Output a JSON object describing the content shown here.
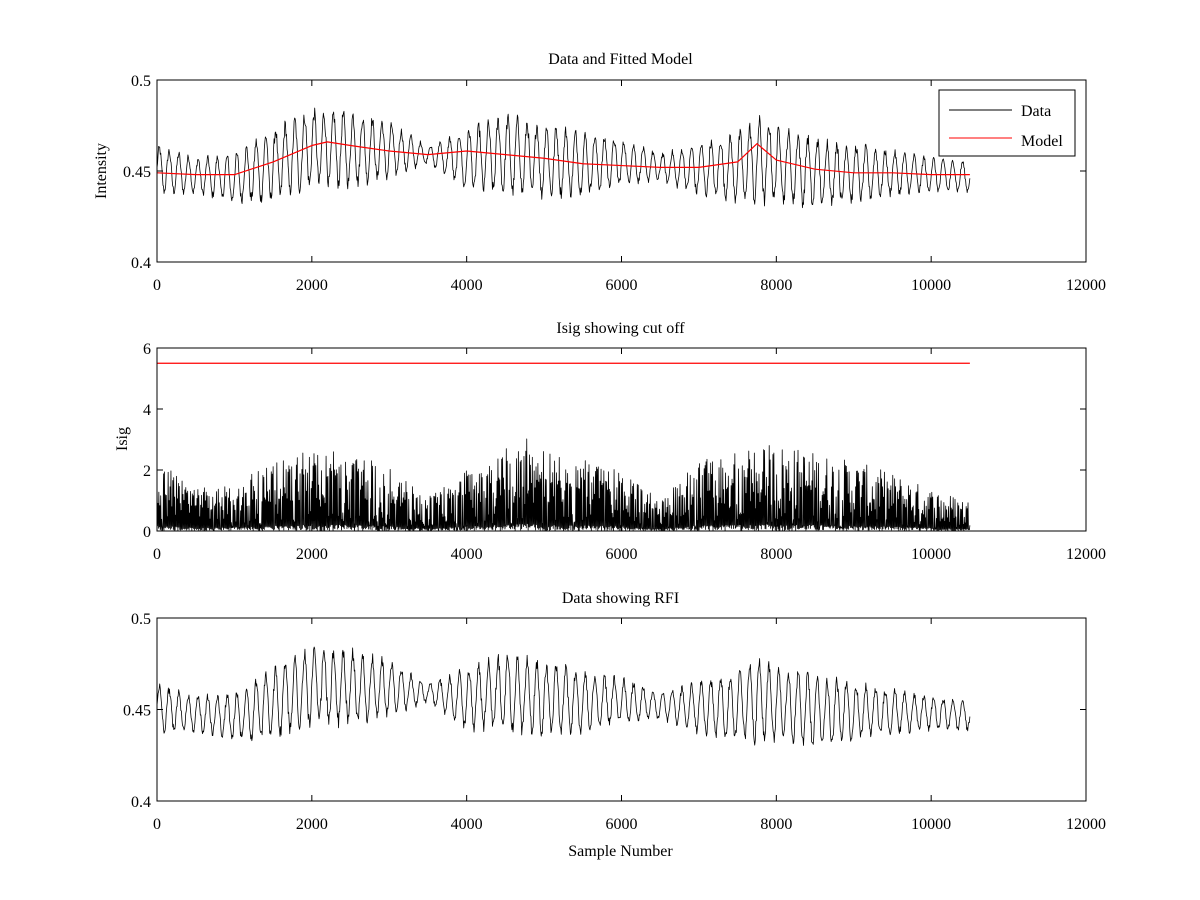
{
  "figure": {
    "background": "#ffffff",
    "ink_color": "#000000",
    "model_color": "#ff0000"
  },
  "chart_data": [
    {
      "type": "line",
      "title": "Data and Fitted Model",
      "xlabel": "",
      "ylabel": "Intensity",
      "xlim": [
        0,
        12000
      ],
      "ylim": [
        0.4,
        0.5
      ],
      "xticks": [
        0,
        2000,
        4000,
        6000,
        8000,
        10000,
        12000
      ],
      "yticks": [
        0.4,
        0.45,
        0.5
      ],
      "grid": false,
      "legend": {
        "position": "top-right",
        "entries": [
          "Data",
          "Model"
        ]
      },
      "series": [
        {
          "name": "Data",
          "color": "#000000",
          "kind": "oscillating-envelope",
          "x_range": [
            0,
            10500
          ],
          "x": [
            0,
            500,
            1000,
            1500,
            2000,
            2500,
            3000,
            3500,
            4000,
            4500,
            5000,
            5500,
            6000,
            6500,
            7000,
            7500,
            7800,
            8000,
            8500,
            9000,
            9500,
            10000,
            10500
          ],
          "upper": [
            0.465,
            0.458,
            0.46,
            0.475,
            0.485,
            0.484,
            0.478,
            0.464,
            0.474,
            0.482,
            0.478,
            0.472,
            0.468,
            0.46,
            0.466,
            0.472,
            0.481,
            0.476,
            0.47,
            0.466,
            0.462,
            0.458,
            0.456
          ],
          "lower": [
            0.437,
            0.437,
            0.432,
            0.432,
            0.44,
            0.44,
            0.445,
            0.454,
            0.438,
            0.436,
            0.434,
            0.436,
            0.442,
            0.444,
            0.436,
            0.432,
            0.43,
            0.432,
            0.428,
            0.432,
            0.436,
            0.438,
            0.438
          ]
        },
        {
          "name": "Model",
          "color": "#ff0000",
          "kind": "line",
          "x": [
            0,
            500,
            1000,
            1500,
            2000,
            2200,
            2500,
            3000,
            3500,
            4000,
            4500,
            5000,
            5500,
            6000,
            6500,
            7000,
            7500,
            7750,
            8000,
            8500,
            9000,
            9500,
            10000,
            10500
          ],
          "y": [
            0.449,
            0.448,
            0.448,
            0.455,
            0.464,
            0.466,
            0.464,
            0.461,
            0.459,
            0.461,
            0.459,
            0.457,
            0.454,
            0.453,
            0.452,
            0.452,
            0.455,
            0.465,
            0.456,
            0.451,
            0.449,
            0.449,
            0.448,
            0.448
          ]
        }
      ]
    },
    {
      "type": "line",
      "title": "Isig showing cut off",
      "xlabel": "",
      "ylabel": "Isig",
      "xlim": [
        0,
        12000
      ],
      "ylim": [
        0,
        6
      ],
      "xticks": [
        0,
        2000,
        4000,
        6000,
        8000,
        10000,
        12000
      ],
      "yticks": [
        0,
        2,
        4,
        6
      ],
      "grid": false,
      "series": [
        {
          "color": "#000000",
          "kind": "spiky-envelope",
          "x_range": [
            0,
            10500
          ],
          "x": [
            0,
            500,
            1000,
            1500,
            2000,
            2500,
            3000,
            3500,
            4000,
            4500,
            4800,
            5000,
            5500,
            6000,
            6500,
            7000,
            7500,
            8000,
            8500,
            9000,
            9500,
            10000,
            10500
          ],
          "upper": [
            2.3,
            1.4,
            1.6,
            2.2,
            2.7,
            2.6,
            2.1,
            1.1,
            2.0,
            2.7,
            3.1,
            2.7,
            2.4,
            2.0,
            1.0,
            2.3,
            2.6,
            2.9,
            2.6,
            2.3,
            1.9,
            1.4,
            1.0
          ],
          "lower": [
            0,
            0,
            0,
            0,
            0,
            0,
            0,
            0,
            0,
            0,
            0,
            0,
            0,
            0,
            0,
            0,
            0,
            0,
            0,
            0,
            0,
            0,
            0
          ]
        },
        {
          "color": "#ff0000",
          "kind": "line",
          "x": [
            0,
            10500
          ],
          "y": [
            5.5,
            5.5
          ]
        }
      ]
    },
    {
      "type": "line",
      "title": "Data showing RFI",
      "xlabel": "Sample Number",
      "ylabel": "",
      "xlim": [
        0,
        12000
      ],
      "ylim": [
        0.4,
        0.5
      ],
      "xticks": [
        0,
        2000,
        4000,
        6000,
        8000,
        10000,
        12000
      ],
      "yticks": [
        0.4,
        0.45,
        0.5
      ],
      "grid": false,
      "series": [
        {
          "color": "#000000",
          "kind": "oscillating-envelope",
          "x_range": [
            0,
            10500
          ],
          "x": [
            0,
            500,
            1000,
            1500,
            2000,
            2500,
            3000,
            3500,
            4000,
            4500,
            5000,
            5500,
            6000,
            6500,
            7000,
            7500,
            7800,
            8000,
            8500,
            9000,
            9500,
            10000,
            10500
          ],
          "upper": [
            0.465,
            0.458,
            0.46,
            0.475,
            0.485,
            0.484,
            0.478,
            0.464,
            0.474,
            0.482,
            0.478,
            0.472,
            0.468,
            0.46,
            0.466,
            0.472,
            0.481,
            0.476,
            0.47,
            0.466,
            0.462,
            0.458,
            0.456
          ],
          "lower": [
            0.437,
            0.437,
            0.432,
            0.432,
            0.44,
            0.44,
            0.445,
            0.454,
            0.438,
            0.436,
            0.434,
            0.436,
            0.442,
            0.444,
            0.436,
            0.432,
            0.43,
            0.432,
            0.428,
            0.432,
            0.436,
            0.438,
            0.438
          ]
        }
      ]
    }
  ]
}
